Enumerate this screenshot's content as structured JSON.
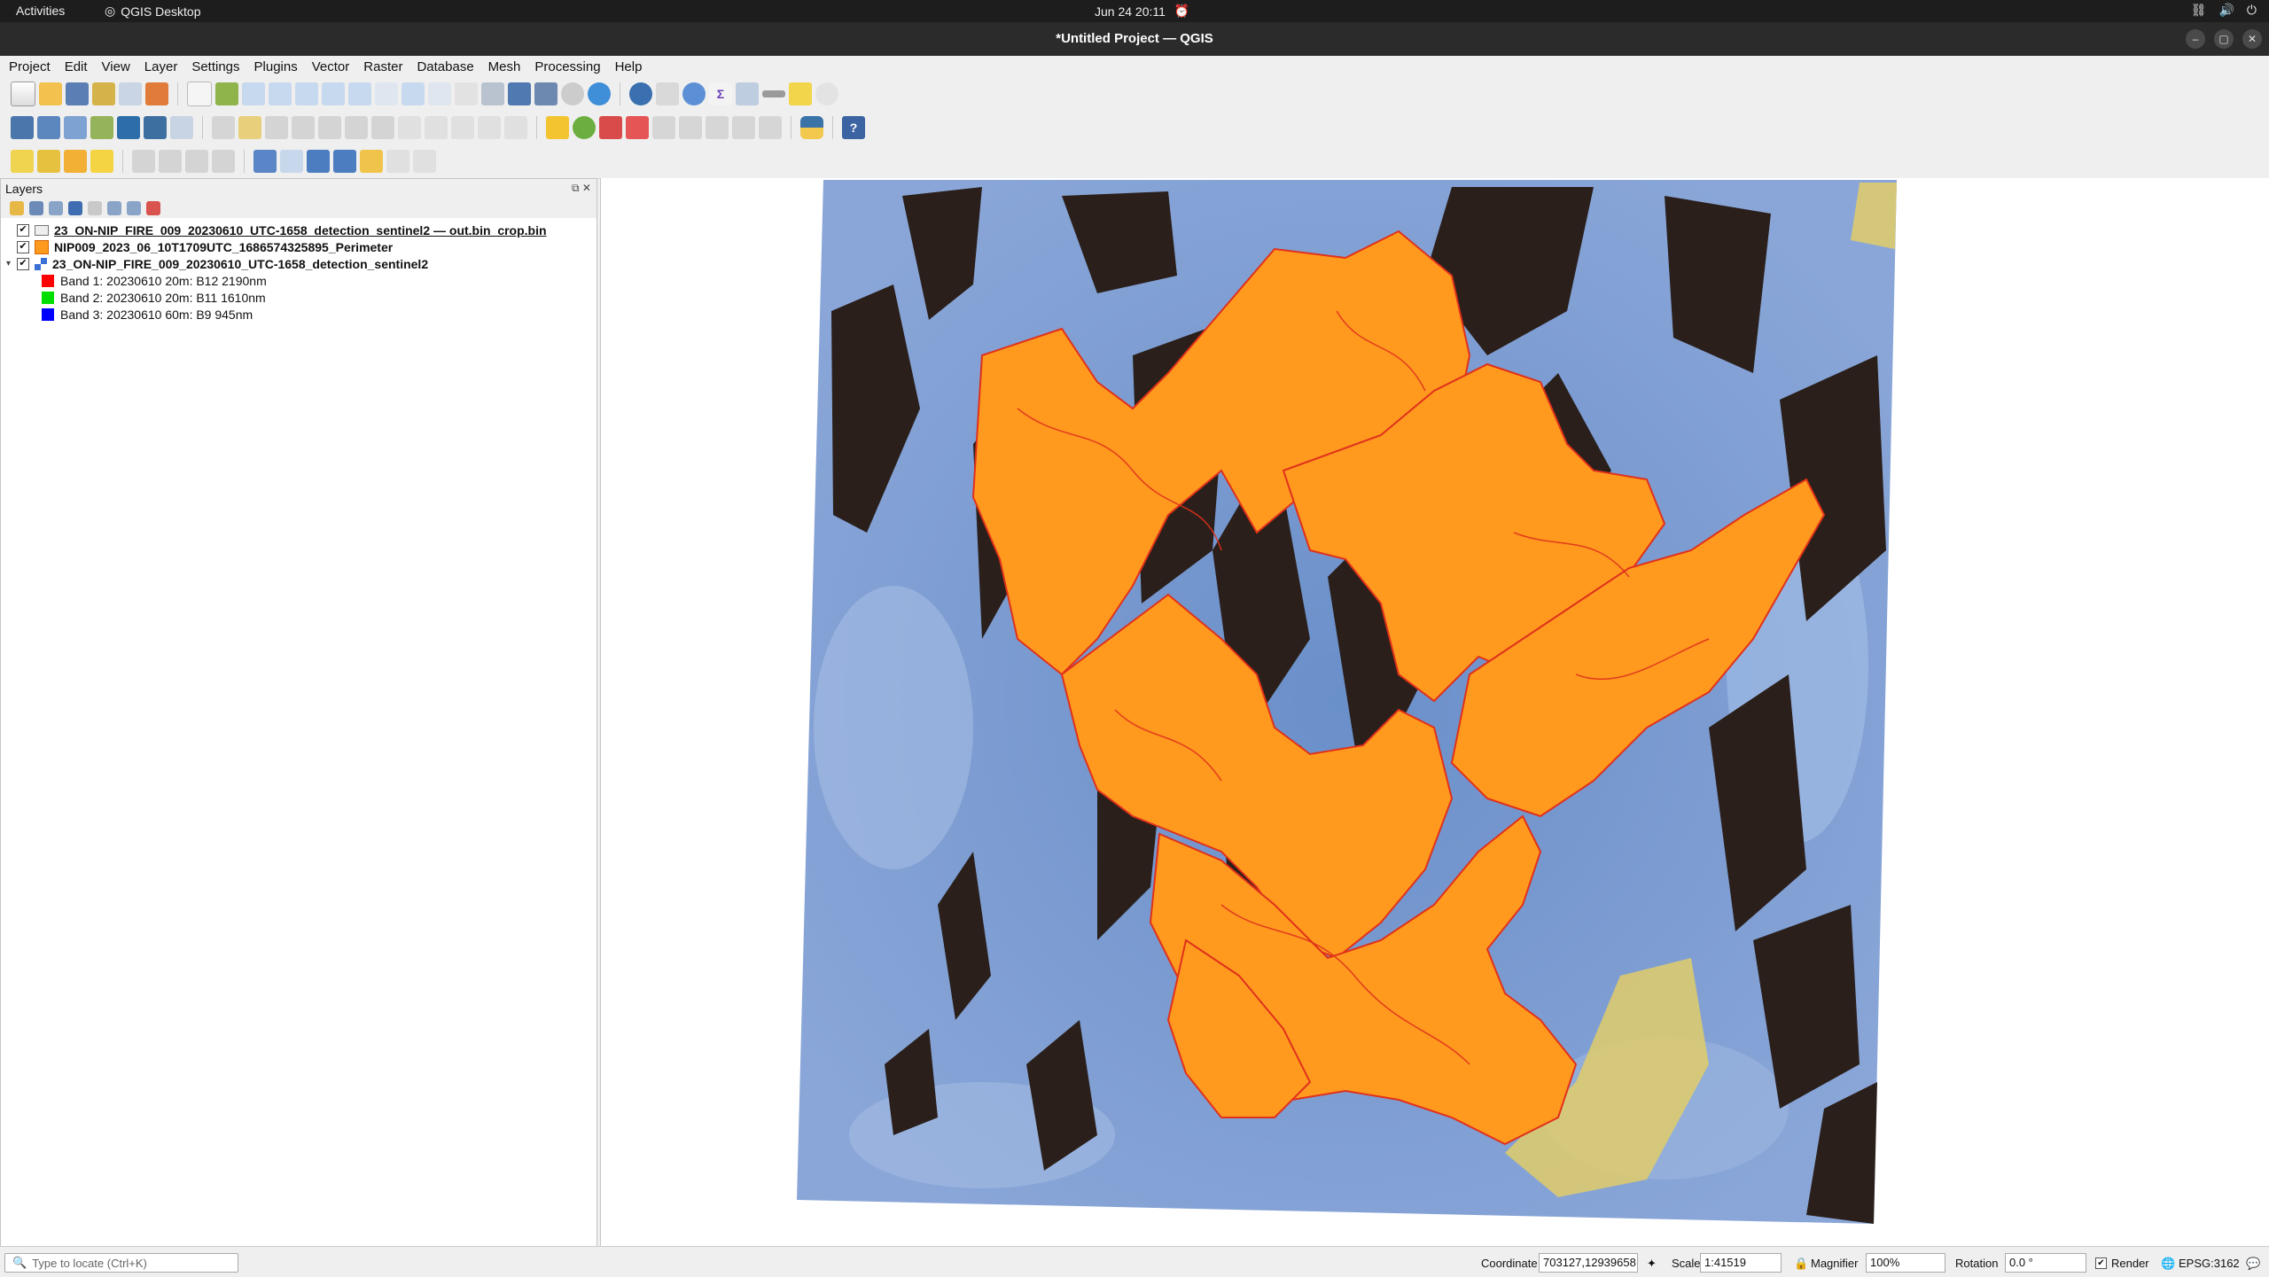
{
  "topbar": {
    "activities": "Activities",
    "app_name": "QGIS Desktop",
    "datetime": "Jun 24  20:11"
  },
  "window": {
    "title": "*Untitled Project — QGIS"
  },
  "menu": [
    "Project",
    "Edit",
    "View",
    "Layer",
    "Settings",
    "Plugins",
    "Vector",
    "Raster",
    "Database",
    "Mesh",
    "Processing",
    "Help"
  ],
  "layers_panel": {
    "title": "Layers",
    "layers": [
      {
        "name": "23_ON-NIP_FIRE_009_20230610_UTC-1658_detection_sentinel2 — out.bin_crop.bin",
        "checked": true,
        "icon": "polygon-layer-icon"
      },
      {
        "name": "NIP009_2023_06_10T1709UTC_1686574325895_Perimeter",
        "checked": true,
        "icon": "orange-fill-icon"
      },
      {
        "name": "23_ON-NIP_FIRE_009_20230610_UTC-1658_detection_sentinel2",
        "checked": true,
        "icon": "raster-layer-icon"
      }
    ],
    "bands": [
      {
        "label": "Band 1: 20230610 20m: B12 2190nm",
        "color": "#ff0000"
      },
      {
        "label": "Band 2: 20230610 20m: B11 1610nm",
        "color": "#00dd00"
      },
      {
        "label": "Band 3: 20230610 60m: B9 945nm",
        "color": "#0000ff"
      }
    ]
  },
  "map": {
    "perimeter_fill": "#ff9a1f",
    "perimeter_edge": "#e0311a"
  },
  "status": {
    "locator_placeholder": "Type to locate (Ctrl+K)",
    "coordinate_label": "Coordinate",
    "coordinate_value": "703127,12939658",
    "scale_label": "Scale",
    "scale_value": "1:41519",
    "magnifier_label": "Magnifier",
    "magnifier_value": "100%",
    "rotation_label": "Rotation",
    "rotation_value": "0.0 °",
    "render_label": "Render",
    "crs": "EPSG:3162"
  }
}
